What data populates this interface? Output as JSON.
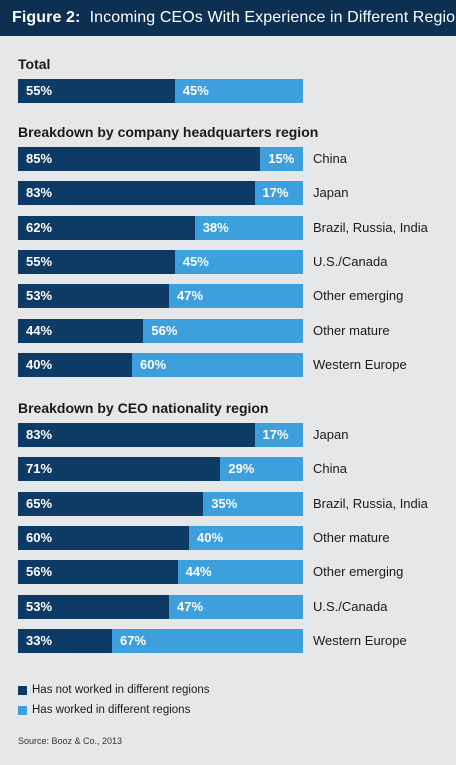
{
  "header": {
    "figure_label": "Figure 2:",
    "title": "Incoming CEOs With Experience in Different Regions"
  },
  "colors": {
    "header_bg": "#0c2f52",
    "dark_series": "#0e3a66",
    "light_series": "#3d9fdc",
    "background": "#e6e7e8"
  },
  "chart_data": {
    "type": "bar",
    "stacked": true,
    "orientation": "horizontal",
    "title": "Incoming CEOs With Experience in Different Regions",
    "series_names": [
      "Has not worked in different regions",
      "Has worked in different regions"
    ],
    "groups": [
      {
        "title": "Total",
        "categories": [
          ""
        ],
        "series": [
          {
            "name": "Has not worked in different regions",
            "values": [
              55
            ]
          },
          {
            "name": "Has worked in different regions",
            "values": [
              45
            ]
          }
        ]
      },
      {
        "title": "Breakdown by company headquarters region",
        "categories": [
          "China",
          "Japan",
          "Brazil, Russia, India",
          "U.S./Canada",
          "Other emerging",
          "Other mature",
          "Western Europe"
        ],
        "series": [
          {
            "name": "Has not worked in different regions",
            "values": [
              85,
              83,
              62,
              55,
              53,
              44,
              40
            ]
          },
          {
            "name": "Has worked in different regions",
            "values": [
              15,
              17,
              38,
              45,
              47,
              56,
              60
            ]
          }
        ]
      },
      {
        "title": "Breakdown by CEO nationality region",
        "categories": [
          "Japan",
          "China",
          "Brazil, Russia, India",
          "Other mature",
          "Other emerging",
          "U.S./Canada",
          "Western Europe"
        ],
        "series": [
          {
            "name": "Has not worked in different regions",
            "values": [
              83,
              71,
              65,
              60,
              56,
              53,
              33
            ]
          },
          {
            "name": "Has worked in different regions",
            "values": [
              17,
              29,
              35,
              40,
              44,
              47,
              67
            ]
          }
        ]
      }
    ]
  },
  "legend": [
    {
      "label": "Has not worked in different regions"
    },
    {
      "label": "Has worked in different regions"
    }
  ],
  "source": "Source: Booz & Co., 2013"
}
